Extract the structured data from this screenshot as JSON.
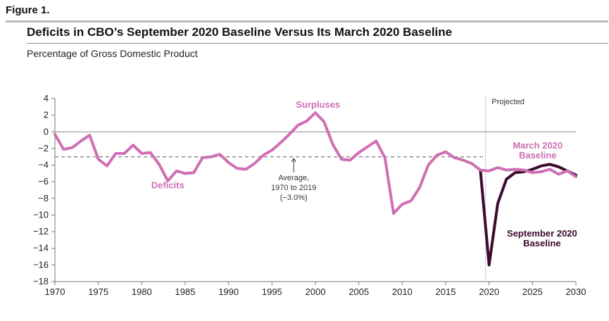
{
  "figure_label": "Figure 1.",
  "title": "Deficits in CBO’s September 2020 Baseline Versus Its March 2020 Baseline",
  "subtitle": "Percentage of Gross Domestic Product",
  "colors": {
    "march": "#cf6fb4",
    "september": "#3d0b2e",
    "axis": "#777777",
    "average": "#777777"
  },
  "chart_data": {
    "type": "line",
    "x": [
      1970,
      1971,
      1972,
      1973,
      1974,
      1975,
      1976,
      1977,
      1978,
      1979,
      1980,
      1981,
      1982,
      1983,
      1984,
      1985,
      1986,
      1987,
      1988,
      1989,
      1990,
      1991,
      1992,
      1993,
      1994,
      1995,
      1996,
      1997,
      1998,
      1999,
      2000,
      2001,
      2002,
      2003,
      2004,
      2005,
      2006,
      2007,
      2008,
      2009,
      2010,
      2011,
      2012,
      2013,
      2014,
      2015,
      2016,
      2017,
      2018,
      2019,
      2020,
      2021,
      2022,
      2023,
      2024,
      2025,
      2026,
      2027,
      2028,
      2029,
      2030
    ],
    "xlim": [
      1970,
      2030
    ],
    "xticks": [
      1970,
      1975,
      1980,
      1985,
      1990,
      1995,
      2000,
      2005,
      2010,
      2015,
      2020,
      2025,
      2030
    ],
    "ylim": [
      -18,
      4
    ],
    "yticks": [
      4,
      2,
      0,
      -2,
      -4,
      -6,
      -8,
      -10,
      -12,
      -14,
      -16,
      -18
    ],
    "series": [
      {
        "name": "March 2020 Baseline",
        "values": [
          -0.3,
          -2.1,
          -1.9,
          -1.1,
          -0.4,
          -3.3,
          -4.1,
          -2.6,
          -2.6,
          -1.6,
          -2.6,
          -2.5,
          -3.9,
          -5.9,
          -4.7,
          -5.0,
          -4.9,
          -3.1,
          -3.0,
          -2.7,
          -3.7,
          -4.4,
          -4.5,
          -3.8,
          -2.8,
          -2.2,
          -1.3,
          -0.3,
          0.8,
          1.3,
          2.3,
          1.2,
          -1.5,
          -3.3,
          -3.4,
          -2.5,
          -1.8,
          -1.1,
          -3.1,
          -9.8,
          -8.7,
          -8.3,
          -6.7,
          -4.0,
          -2.8,
          -2.4,
          -3.1,
          -3.4,
          -3.8,
          -4.6,
          -4.7,
          -4.3,
          -4.6,
          -4.5,
          -4.6,
          -4.9,
          -4.8,
          -4.5,
          -5.1,
          -4.7,
          -5.4
        ]
      },
      {
        "name": "September 2020 Baseline",
        "values": [
          null,
          null,
          null,
          null,
          null,
          null,
          null,
          null,
          null,
          null,
          null,
          null,
          null,
          null,
          null,
          null,
          null,
          null,
          null,
          null,
          null,
          null,
          null,
          null,
          null,
          null,
          null,
          null,
          null,
          null,
          null,
          null,
          null,
          null,
          null,
          null,
          null,
          null,
          null,
          null,
          null,
          null,
          null,
          null,
          null,
          null,
          null,
          null,
          null,
          -4.6,
          -16.0,
          -8.6,
          -5.7,
          -4.9,
          -4.8,
          -4.5,
          -4.1,
          -3.9,
          -4.2,
          -4.7,
          -5.2
        ]
      }
    ],
    "average": {
      "value": -3.0
    },
    "labels": {
      "surpluses": "Surpluses",
      "deficits": "Deficits",
      "average": [
        "Average,",
        "1970 to 2019",
        "(−3.0%)"
      ],
      "projected": "Projected",
      "march": [
        "March 2020",
        "Baseline"
      ],
      "september": [
        "September 2020",
        "Baseline"
      ]
    }
  }
}
